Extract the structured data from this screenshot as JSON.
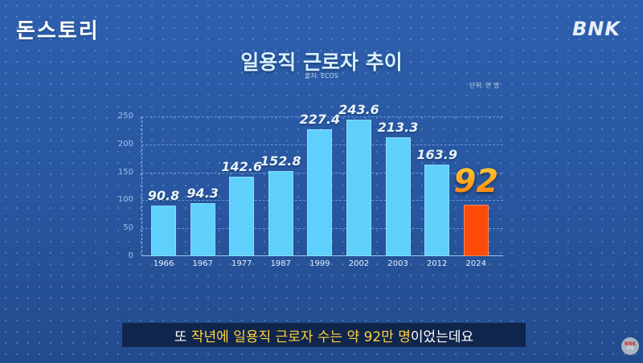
{
  "header": {
    "channel_logo": "돈스토리",
    "brand_logo": "BNK"
  },
  "chart": {
    "title": "일용직 근로자 추이",
    "source": "출처: ECOS",
    "unit": "단위: 만 명"
  },
  "chart_data": {
    "type": "bar",
    "title": "일용직 근로자 추이",
    "subtitle": "출처: ECOS",
    "unit": "단위: 만 명",
    "xlabel": "",
    "ylabel": "",
    "categories": [
      "1966",
      "1967",
      "1977",
      "1987",
      "1999",
      "2002",
      "2003",
      "2012",
      "2024"
    ],
    "values": [
      90.8,
      94.3,
      142.6,
      152.8,
      227.4,
      243.6,
      213.3,
      163.9,
      92
    ],
    "value_labels": [
      "90.8",
      "94.3",
      "142.6",
      "152.8",
      "227.4",
      "243.6",
      "213.3",
      "163.9",
      "92"
    ],
    "highlight_index": 8,
    "ylim": [
      0,
      250
    ],
    "yticks": [
      0,
      50,
      100,
      150,
      200,
      250
    ],
    "grid": true,
    "legend": null,
    "colors": {
      "bar": "#5fd0fb",
      "highlight_bar": "#ff4b0a",
      "highlight_label": "#ffb020"
    }
  },
  "subtitle": {
    "prefix": "또 ",
    "highlight": "작년에 일용직 근로자 수는 약 92만 명",
    "suffix": "이었는데요"
  },
  "badge": {
    "line1": "BNK",
    "line2": "구독"
  }
}
